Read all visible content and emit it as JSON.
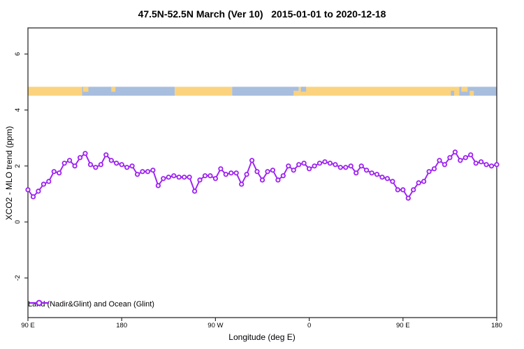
{
  "figure": {
    "title": "47.5N-52.5N March (Ver 10)   2015-01-01 to 2020-12-18",
    "xlabel": "Longitude (deg E)",
    "ylabel": "XCO2 - MLO trend (ppm)"
  },
  "legend": {
    "label": "Land (Nadir&Glint) and Ocean (Glint)"
  },
  "colors": {
    "line": "#9C20F0",
    "marker_fill": "#ffffff",
    "land": "#FBD37E",
    "ocean": "#A8BEDE",
    "axis": "#2e2e2e",
    "text": "#000000",
    "background": "#ffffff"
  },
  "axes": {
    "x_ticks": [
      {
        "value": 90,
        "label": "90 E"
      },
      {
        "value": 180,
        "label": "180"
      },
      {
        "value": 270,
        "label": "90 W"
      },
      {
        "value": 360,
        "label": "0"
      },
      {
        "value": 450,
        "label": "90 E"
      },
      {
        "value": 540,
        "label": "180"
      }
    ],
    "y_ticks": [
      -2,
      0,
      2,
      4,
      6
    ],
    "x_range_plot_deg": [
      90,
      540
    ],
    "y_range": [
      -3.4,
      6.9
    ],
    "grid": false,
    "y_tick_labels_rotated": true
  },
  "chart_data": {
    "type": "line",
    "title": "47.5N-52.5N March (Ver 10)   2015-01-01 to 2020-12-18",
    "xlabel": "Longitude (deg E)",
    "ylabel": "XCO2 - MLO trend (ppm)",
    "xlim": [
      90,
      540
    ],
    "ylim": [
      -3.4,
      6.9
    ],
    "x_axis_note": "longitude axis runs eastward and wraps: 90E > 180 > 90W > 0 > 90E > 180",
    "x_deg_plot": [
      90,
      95,
      100,
      105,
      110,
      115,
      120,
      125,
      130,
      135,
      140,
      145,
      150,
      155,
      160,
      165,
      170,
      175,
      180,
      185,
      190,
      195,
      200,
      205,
      210,
      215,
      220,
      225,
      230,
      235,
      240,
      245,
      250,
      255,
      260,
      265,
      270,
      275,
      280,
      285,
      290,
      295,
      300,
      305,
      310,
      315,
      320,
      325,
      330,
      335,
      340,
      345,
      350,
      355,
      360,
      365,
      370,
      375,
      380,
      385,
      390,
      395,
      400,
      405,
      410,
      415,
      420,
      425,
      430,
      435,
      440,
      445,
      450,
      455,
      460,
      465,
      470,
      475,
      480,
      485,
      490,
      495,
      500,
      505,
      510,
      515,
      520,
      525,
      530,
      535,
      540
    ],
    "series": [
      {
        "name": "Land (Nadir&Glint) and Ocean (Glint)",
        "marker": "open-circle",
        "values": [
          1.15,
          0.9,
          1.1,
          1.35,
          1.45,
          1.8,
          1.75,
          2.1,
          2.2,
          2.0,
          2.3,
          2.45,
          2.05,
          1.95,
          2.05,
          2.4,
          2.2,
          2.1,
          2.05,
          1.95,
          2.0,
          1.7,
          1.8,
          1.8,
          1.85,
          1.3,
          1.55,
          1.6,
          1.65,
          1.6,
          1.6,
          1.6,
          1.1,
          1.5,
          1.65,
          1.65,
          1.55,
          1.9,
          1.7,
          1.75,
          1.75,
          1.35,
          1.7,
          2.2,
          1.8,
          1.5,
          1.8,
          1.85,
          1.5,
          1.65,
          2.0,
          1.85,
          2.05,
          2.1,
          1.9,
          2.0,
          2.1,
          2.15,
          2.1,
          2.05,
          1.95,
          1.95,
          2.0,
          1.75,
          2.0,
          1.85,
          1.75,
          1.7,
          1.6,
          1.55,
          1.45,
          1.15,
          1.15,
          0.85,
          1.15,
          1.4,
          1.45,
          1.8,
          1.9,
          2.2,
          2.05,
          2.3,
          2.5,
          2.2,
          2.3,
          2.4,
          2.1,
          2.15,
          2.05,
          2.0,
          2.05
        ]
      }
    ],
    "surface_band": {
      "description": "land(yellow)/ocean(blue) strip",
      "y_top": 4.83,
      "y_bottom": 4.51,
      "segments": [
        {
          "from": 90,
          "to": 142,
          "type": "land"
        },
        {
          "from": 142,
          "to": 231,
          "type": "ocean"
        },
        {
          "from": 231,
          "to": 286,
          "type": "land"
        },
        {
          "from": 286,
          "to": 350,
          "type": "ocean"
        },
        {
          "from": 350,
          "to": 504,
          "type": "land"
        },
        {
          "from": 504,
          "to": 540,
          "type": "ocean"
        }
      ],
      "specks": [
        {
          "from": 143,
          "to": 148,
          "type": "land",
          "part": "top"
        },
        {
          "from": 170,
          "to": 174,
          "type": "land",
          "part": "top"
        },
        {
          "from": 345,
          "to": 350,
          "type": "land",
          "part": "bottom"
        },
        {
          "from": 352,
          "to": 357,
          "type": "ocean",
          "part": "top"
        },
        {
          "from": 496,
          "to": 499,
          "type": "ocean",
          "part": "bottom"
        },
        {
          "from": 506,
          "to": 512,
          "type": "land",
          "part": "top"
        },
        {
          "from": 514,
          "to": 518,
          "type": "land",
          "part": "bottom"
        }
      ]
    }
  }
}
